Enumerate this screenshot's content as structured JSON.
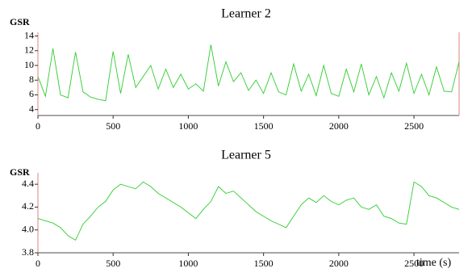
{
  "chart_data": [
    {
      "type": "line",
      "title": "Learner 2",
      "y_label": "GSR",
      "x": [
        0,
        50,
        100,
        150,
        200,
        250,
        300,
        350,
        400,
        450,
        500,
        550,
        600,
        650,
        700,
        750,
        800,
        850,
        900,
        950,
        1000,
        1050,
        1100,
        1150,
        1200,
        1250,
        1300,
        1350,
        1400,
        1450,
        1500,
        1550,
        1600,
        1650,
        1700,
        1750,
        1800,
        1850,
        1900,
        1950,
        2000,
        2050,
        2100,
        2150,
        2200,
        2250,
        2300,
        2350,
        2400,
        2450,
        2500,
        2550,
        2600,
        2650,
        2700,
        2750,
        2800
      ],
      "values": [
        8.5,
        5.8,
        12.3,
        6.0,
        5.6,
        11.8,
        6.4,
        5.7,
        5.4,
        5.2,
        11.9,
        6.2,
        11.5,
        7.0,
        8.5,
        10.0,
        6.8,
        9.5,
        7.0,
        8.8,
        6.8,
        7.5,
        6.5,
        12.8,
        7.2,
        10.5,
        7.8,
        9.0,
        6.6,
        8.0,
        6.2,
        9.0,
        6.4,
        6.0,
        10.2,
        6.5,
        8.8,
        5.9,
        10.0,
        6.2,
        5.8,
        9.5,
        6.4,
        10.2,
        6.0,
        8.5,
        5.6,
        9.0,
        6.5,
        10.3,
        6.2,
        8.8,
        6.0,
        9.8,
        6.5,
        6.4,
        10.5
      ],
      "color": "#2ecc2e",
      "xlim": [
        0,
        2800
      ],
      "ylim": [
        3.2,
        14.5
      ],
      "xticks": [
        0,
        500,
        1000,
        1500,
        2000,
        2500
      ],
      "yticks": [
        4,
        6,
        8,
        10,
        12,
        14
      ]
    },
    {
      "type": "line",
      "title": "Learner 5",
      "y_label": "GSR",
      "x_label": "time (s)",
      "x": [
        0,
        50,
        100,
        150,
        200,
        250,
        300,
        350,
        400,
        450,
        500,
        550,
        600,
        650,
        700,
        750,
        800,
        850,
        900,
        950,
        1000,
        1050,
        1100,
        1150,
        1200,
        1250,
        1300,
        1350,
        1400,
        1450,
        1500,
        1550,
        1600,
        1650,
        1700,
        1750,
        1800,
        1850,
        1900,
        1950,
        2000,
        2050,
        2100,
        2150,
        2200,
        2250,
        2300,
        2350,
        2400,
        2450,
        2500,
        2550,
        2600,
        2650,
        2700,
        2750,
        2800
      ],
      "values": [
        4.1,
        4.08,
        4.06,
        4.02,
        3.95,
        3.91,
        4.05,
        4.12,
        4.2,
        4.25,
        4.35,
        4.4,
        4.38,
        4.36,
        4.42,
        4.38,
        4.32,
        4.28,
        4.24,
        4.2,
        4.15,
        4.1,
        4.18,
        4.25,
        4.38,
        4.32,
        4.34,
        4.28,
        4.22,
        4.16,
        4.12,
        4.08,
        4.05,
        4.02,
        4.12,
        4.22,
        4.28,
        4.24,
        4.3,
        4.25,
        4.22,
        4.26,
        4.28,
        4.2,
        4.18,
        4.22,
        4.12,
        4.1,
        4.06,
        4.05,
        4.42,
        4.38,
        4.3,
        4.28,
        4.24,
        4.2,
        4.18
      ],
      "color": "#2ecc2e",
      "xlim": [
        0,
        2800
      ],
      "ylim": [
        3.8,
        4.5
      ],
      "xticks": [
        0,
        500,
        1000,
        1500,
        2000,
        2500
      ],
      "yticks": [
        3.8,
        {
          "value": 4,
          "label": "4.0"
        },
        4.2,
        4.4
      ]
    }
  ]
}
